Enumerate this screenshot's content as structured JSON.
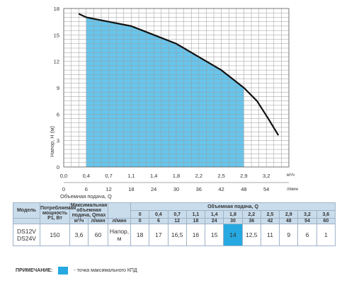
{
  "chart_data": {
    "type": "line",
    "ylabel": "Напор, H (м)",
    "xlabel": "Объемная подача, Q",
    "x_unit_top": "м³/ч",
    "x_unit_bottom": "л/мин",
    "y_ticks": [
      "0",
      "3",
      "6",
      "9",
      "12",
      "15",
      "18"
    ],
    "ylim": [
      0,
      18
    ],
    "x_ticks_m3h": [
      "0,0",
      "0,4",
      "0,7",
      "1,1",
      "1,4",
      "1,8",
      "2,2",
      "2,5",
      "2,9",
      "3,2"
    ],
    "x_ticks_lmin": [
      "0",
      "6",
      "12",
      "18",
      "24",
      "30",
      "36",
      "42",
      "48",
      "54"
    ],
    "xlim_lmin": [
      0,
      60
    ],
    "curve_lmin": [
      4,
      6,
      12,
      18,
      24,
      30,
      36,
      42,
      48,
      51.5,
      54.5,
      57.2
    ],
    "curve_head": [
      17.4,
      17.0,
      16.5,
      16.0,
      15.0,
      14.0,
      12.5,
      11.0,
      9.0,
      7.5,
      5.5,
      3.6
    ],
    "efficiency_zone_lmin": [
      6,
      48
    ],
    "colors": {
      "curve": "#111111",
      "zone": "#68c5ec",
      "grid": "#9a9a9a",
      "highlight": "#25a9e0"
    }
  },
  "table": {
    "header": {
      "model": "Модель",
      "power": "Потребляемая мощность P1, Вт",
      "qmax": "Максимальная объемная подача, Qmax",
      "flow": "Объемная подача, Q",
      "unit_m3h": "м³/ч",
      "unit_lmin": "л/мин"
    },
    "flow_m3h": [
      "0",
      "0,4",
      "0,7",
      "1,1",
      "1,4",
      "1,8",
      "2,2",
      "2,5",
      "2,9",
      "3,2",
      "3,6"
    ],
    "flow_lmin": [
      "0",
      "6",
      "12",
      "18",
      "24",
      "30",
      "36",
      "42",
      "48",
      "54",
      "60"
    ],
    "row": {
      "model": "DS12V DS24V",
      "power": "150",
      "qmax_m3h": "3,6",
      "qmax_lmin": "60",
      "head_label": "Напор, м",
      "heads": [
        "18",
        "17",
        "16,5",
        "16",
        "15",
        "14",
        "12,5",
        "11",
        "9",
        "6",
        "1"
      ],
      "highlight_index": 5
    }
  },
  "note": {
    "title": "ПРИМЕЧАНИЕ:",
    "text": "- точка максимального КПД"
  }
}
